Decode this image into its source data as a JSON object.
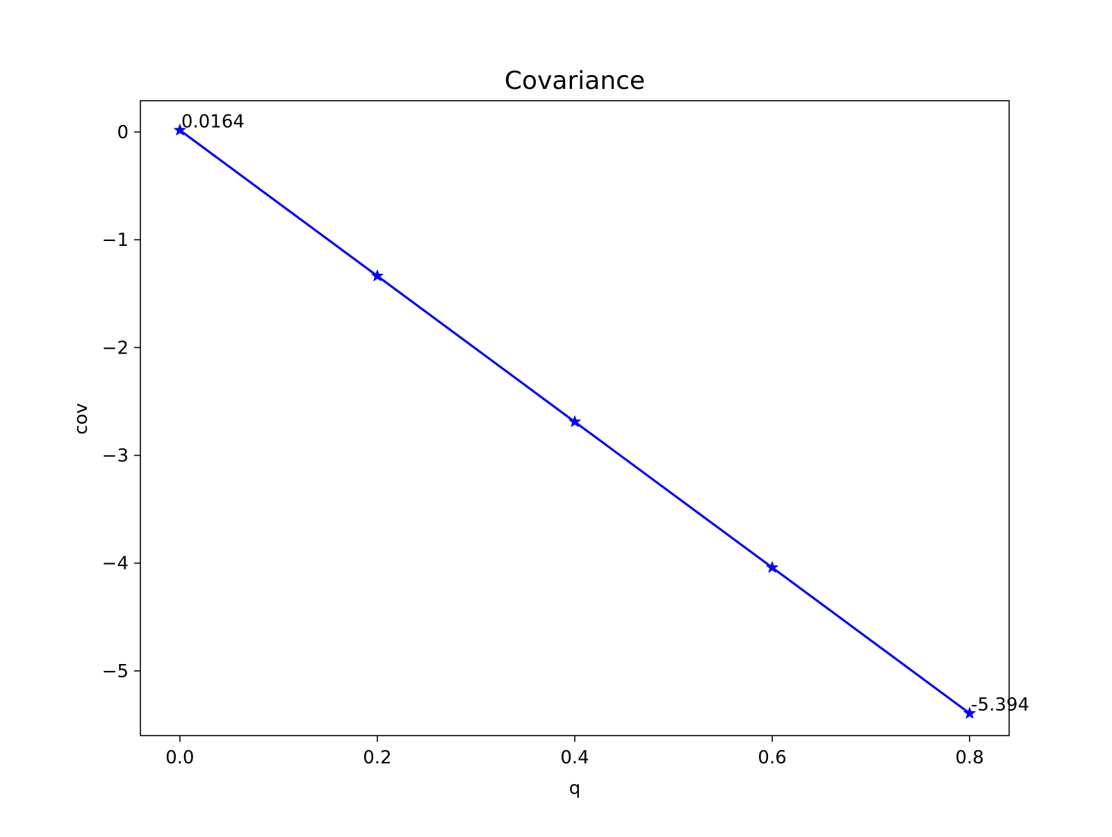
{
  "chart_data": {
    "type": "line",
    "title": "Covariance",
    "xlabel": "q",
    "ylabel": "cov",
    "xlim": [
      -0.04,
      0.84
    ],
    "ylim": [
      -5.6,
      0.29
    ],
    "xticks": [
      0.0,
      0.2,
      0.4,
      0.6,
      0.8
    ],
    "xtick_labels": [
      "0.0",
      "0.2",
      "0.4",
      "0.6",
      "0.8"
    ],
    "yticks": [
      0,
      -1,
      -2,
      -3,
      -4,
      -5
    ],
    "ytick_labels": [
      "0",
      "−1",
      "−2",
      "−3",
      "−4",
      "−5"
    ],
    "grid": false,
    "legend": "none",
    "series": [
      {
        "color": "#0000ff",
        "marker": "star",
        "x": [
          0.0,
          0.2,
          0.4,
          0.6,
          0.8
        ],
        "y": [
          0.0164,
          -1.336,
          -2.689,
          -4.041,
          -5.394
        ]
      }
    ],
    "annotations": [
      {
        "text": "0.0164",
        "x": 0.0,
        "y": 0.0164
      },
      {
        "text": "-5.394",
        "x": 0.8,
        "y": -5.394
      }
    ]
  }
}
